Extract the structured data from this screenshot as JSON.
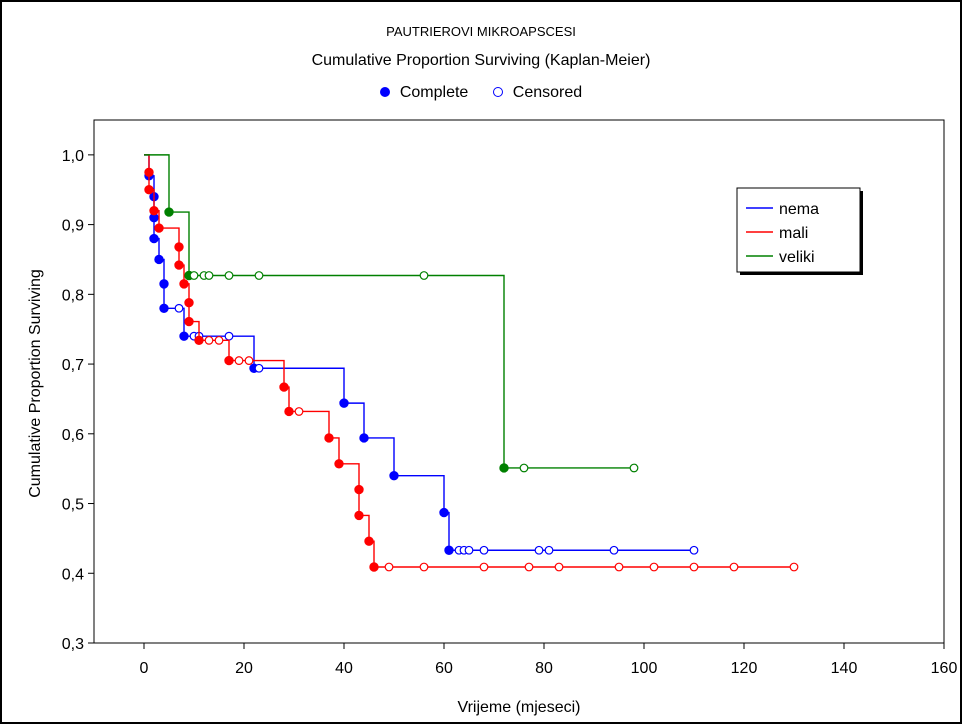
{
  "header": {
    "subtitle": "PAUTRIEROVI MIKROAPSCESI",
    "title": "Cumulative Proportion Surviving (Kaplan-Meier)",
    "marker_legend": {
      "complete_label": "Complete",
      "censored_label": "Censored"
    }
  },
  "chart_data": {
    "type": "line",
    "step": true,
    "xlabel": "Vrijeme (mjeseci)",
    "ylabel": "Cumulative Proportion Surviving",
    "xlim": [
      -10,
      160
    ],
    "ylim": [
      0.3,
      1.05
    ],
    "xticks": [
      0,
      20,
      40,
      60,
      80,
      100,
      120,
      140,
      160
    ],
    "yticks": [
      0.3,
      0.4,
      0.5,
      0.6,
      0.7,
      0.8,
      0.9,
      1.0
    ],
    "ytick_labels": [
      "0,3",
      "0,4",
      "0,5",
      "0,6",
      "0,7",
      "0,8",
      "0,9",
      "1,0"
    ],
    "legend_position": "top-right",
    "series": [
      {
        "name": "nema",
        "color": "#0000ff",
        "steps": [
          [
            0,
            1.0
          ],
          [
            1,
            0.97
          ],
          [
            2,
            0.94
          ],
          [
            2,
            0.91
          ],
          [
            2,
            0.88
          ],
          [
            3,
            0.85
          ],
          [
            4,
            0.815
          ],
          [
            4,
            0.78
          ],
          [
            8,
            0.74
          ],
          [
            22,
            0.694
          ],
          [
            40,
            0.644
          ],
          [
            44,
            0.594
          ],
          [
            50,
            0.54
          ],
          [
            60,
            0.487
          ],
          [
            61,
            0.433
          ],
          [
            110,
            0.433
          ]
        ],
        "complete": [
          [
            1,
            0.97
          ],
          [
            2,
            0.94
          ],
          [
            2,
            0.91
          ],
          [
            2,
            0.88
          ],
          [
            3,
            0.85
          ],
          [
            4,
            0.815
          ],
          [
            4,
            0.78
          ],
          [
            8,
            0.74
          ],
          [
            22,
            0.694
          ],
          [
            40,
            0.644
          ],
          [
            44,
            0.594
          ],
          [
            50,
            0.54
          ],
          [
            60,
            0.487
          ],
          [
            61,
            0.433
          ]
        ],
        "censored": [
          [
            7,
            0.78
          ],
          [
            10,
            0.74
          ],
          [
            11,
            0.74
          ],
          [
            17,
            0.74
          ],
          [
            23,
            0.694
          ],
          [
            63,
            0.433
          ],
          [
            64,
            0.433
          ],
          [
            65,
            0.433
          ],
          [
            68,
            0.433
          ],
          [
            79,
            0.433
          ],
          [
            81,
            0.433
          ],
          [
            94,
            0.433
          ],
          [
            110,
            0.433
          ]
        ]
      },
      {
        "name": "mali",
        "color": "#ff0000",
        "steps": [
          [
            0,
            1.0
          ],
          [
            1,
            0.975
          ],
          [
            1,
            0.95
          ],
          [
            2,
            0.92
          ],
          [
            3,
            0.895
          ],
          [
            7,
            0.868
          ],
          [
            7,
            0.842
          ],
          [
            8,
            0.815
          ],
          [
            9,
            0.788
          ],
          [
            9,
            0.761
          ],
          [
            11,
            0.734
          ],
          [
            17,
            0.705
          ],
          [
            28,
            0.667
          ],
          [
            29,
            0.632
          ],
          [
            37,
            0.594
          ],
          [
            39,
            0.557
          ],
          [
            43,
            0.52
          ],
          [
            43,
            0.483
          ],
          [
            45,
            0.446
          ],
          [
            46,
            0.409
          ],
          [
            130,
            0.409
          ]
        ],
        "complete": [
          [
            1,
            0.975
          ],
          [
            1,
            0.95
          ],
          [
            2,
            0.92
          ],
          [
            3,
            0.895
          ],
          [
            7,
            0.868
          ],
          [
            7,
            0.842
          ],
          [
            8,
            0.815
          ],
          [
            9,
            0.788
          ],
          [
            9,
            0.761
          ],
          [
            11,
            0.734
          ],
          [
            17,
            0.705
          ],
          [
            28,
            0.667
          ],
          [
            29,
            0.632
          ],
          [
            37,
            0.594
          ],
          [
            39,
            0.557
          ],
          [
            43,
            0.52
          ],
          [
            43,
            0.483
          ],
          [
            45,
            0.446
          ],
          [
            46,
            0.409
          ]
        ],
        "censored": [
          [
            13,
            0.734
          ],
          [
            15,
            0.734
          ],
          [
            19,
            0.705
          ],
          [
            21,
            0.705
          ],
          [
            31,
            0.632
          ],
          [
            49,
            0.409
          ],
          [
            56,
            0.409
          ],
          [
            68,
            0.409
          ],
          [
            77,
            0.409
          ],
          [
            83,
            0.409
          ],
          [
            95,
            0.409
          ],
          [
            102,
            0.409
          ],
          [
            110,
            0.409
          ],
          [
            118,
            0.409
          ],
          [
            130,
            0.409
          ]
        ]
      },
      {
        "name": "veliki",
        "color": "#008000",
        "steps": [
          [
            0,
            1.0
          ],
          [
            5,
            0.918
          ],
          [
            9,
            0.918
          ],
          [
            9,
            0.827
          ],
          [
            72,
            0.827
          ],
          [
            72,
            0.551
          ],
          [
            98,
            0.551
          ]
        ],
        "complete": [
          [
            5,
            0.918
          ],
          [
            9,
            0.827
          ],
          [
            72,
            0.551
          ]
        ],
        "censored": [
          [
            10,
            0.827
          ],
          [
            12,
            0.827
          ],
          [
            13,
            0.827
          ],
          [
            17,
            0.827
          ],
          [
            23,
            0.827
          ],
          [
            56,
            0.827
          ],
          [
            76,
            0.551
          ],
          [
            98,
            0.551
          ]
        ]
      }
    ]
  }
}
